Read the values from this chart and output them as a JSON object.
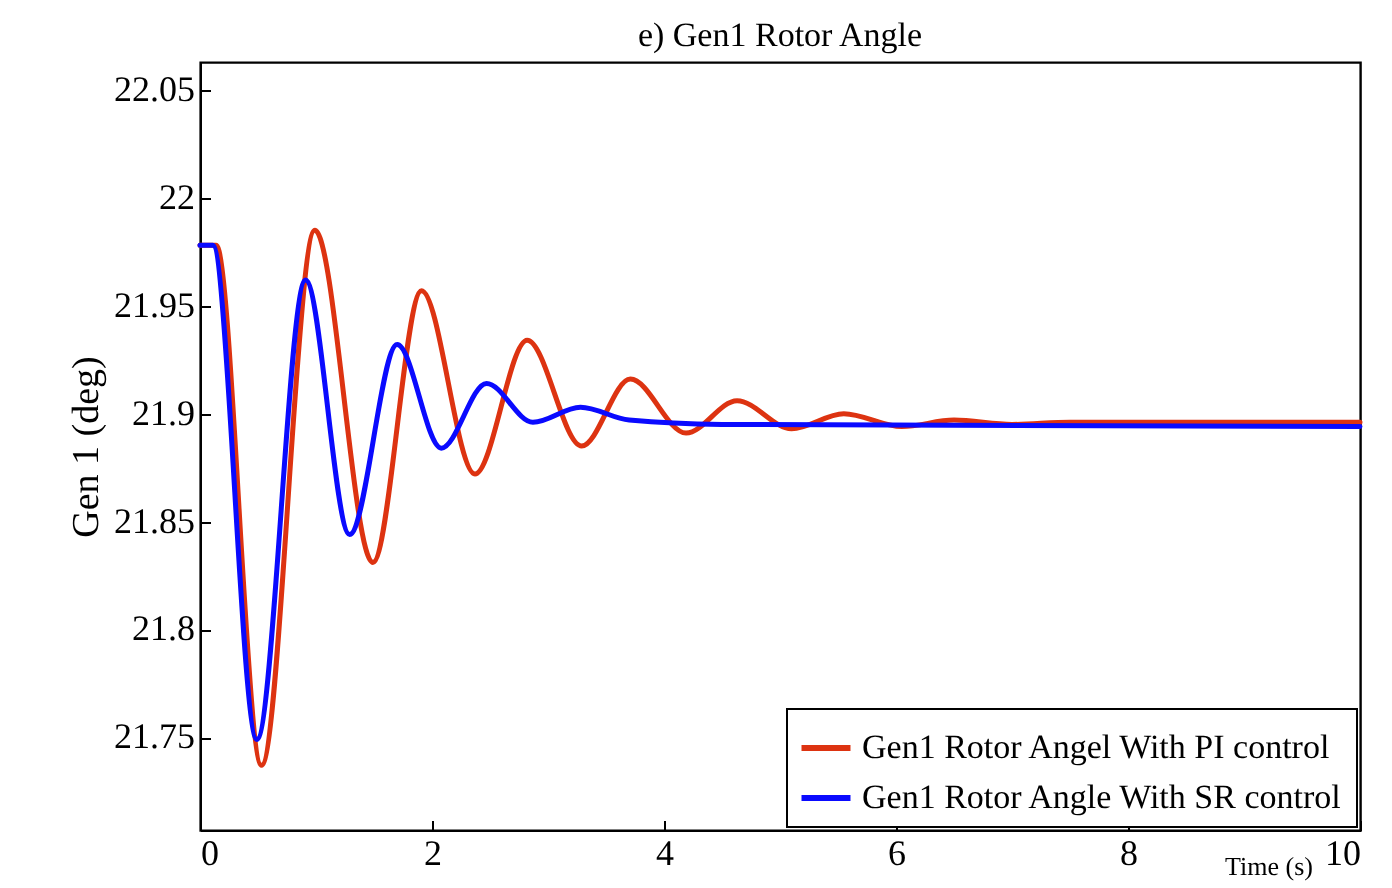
{
  "chart_data": {
    "type": "line",
    "title": "e) Gen1 Rotor Angle",
    "xlabel": "Time (s)",
    "ylabel": "Gen 1 (deg)",
    "xlim": [
      0,
      10
    ],
    "xticks": [
      0,
      2,
      4,
      6,
      8,
      10
    ],
    "ylim": [
      21.707,
      22.063
    ],
    "yticks": [
      21.75,
      21.8,
      21.85,
      21.9,
      21.95,
      22,
      22.05
    ],
    "grid": false,
    "legend": "bottom right",
    "line_style": "solid",
    "marker": "none",
    "series": [
      {
        "name": "Gen1 Rotor Angel With  PI control",
        "color": "#dd3311",
        "x": [
          0,
          0.14,
          0.53,
          0.99,
          1.49,
          1.91,
          2.37,
          2.82,
          3.29,
          3.71,
          4.19,
          4.63,
          5.1,
          5.55,
          6.05,
          6.5,
          7,
          7.5,
          10
        ],
        "values": [
          21.978,
          21.978,
          21.737,
          21.985,
          21.831,
          21.957,
          21.872,
          21.934,
          21.885,
          21.916,
          21.891,
          21.906,
          21.893,
          21.9,
          21.894,
          21.897,
          21.895,
          21.896,
          21.896
        ]
      },
      {
        "name": "Gen1 Rotor Angle With SR control",
        "color": "#0a0aff",
        "x": [
          0,
          0.11,
          0.49,
          0.91,
          1.29,
          1.7,
          2.08,
          2.47,
          2.87,
          3.28,
          3.7,
          4.5,
          10
        ],
        "values": [
          21.978,
          21.978,
          21.749,
          21.962,
          21.844,
          21.932,
          21.884,
          21.914,
          21.896,
          21.903,
          21.897,
          21.895,
          21.894
        ]
      }
    ]
  }
}
